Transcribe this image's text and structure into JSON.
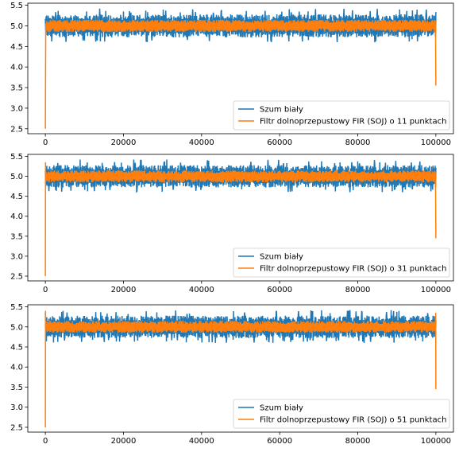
{
  "chart_data": [
    {
      "type": "line",
      "title": "",
      "xlabel": "",
      "ylabel": "",
      "xlim": [
        -4500,
        104500
      ],
      "ylim": [
        2.38,
        5.55
      ],
      "xticks": [
        0,
        20000,
        40000,
        60000,
        80000,
        100000
      ],
      "xtick_labels": [
        "0",
        "20000",
        "40000",
        "60000",
        "80000",
        "100000"
      ],
      "yticks": [
        2.5,
        3.0,
        3.5,
        4.0,
        4.5,
        5.0,
        5.5
      ],
      "ytick_labels": [
        "2.5",
        "3.0",
        "3.5",
        "4.0",
        "4.5",
        "5.0",
        "5.5"
      ],
      "grid": false,
      "legend_position": "lower-right",
      "n_samples": 100000,
      "series": [
        {
          "name": "Szum biały",
          "color": "#1f77b4",
          "description_values": {
            "center": 5.0,
            "levels": [
              4.8,
              5.2
            ],
            "min": 4.6,
            "max": 5.45
          }
        },
        {
          "name": "Filtr dolnoprzepustowy FIR (SOJ) o 11 punktach",
          "color": "#ff7f0e",
          "description_values": {
            "center": 5.0,
            "min": 4.75,
            "max": 5.2,
            "start_dip": 2.5,
            "end_drop": 3.55
          }
        }
      ]
    },
    {
      "type": "line",
      "title": "",
      "xlabel": "",
      "ylabel": "",
      "xlim": [
        -4500,
        104500
      ],
      "ylim": [
        2.38,
        5.55
      ],
      "xticks": [
        0,
        20000,
        40000,
        60000,
        80000,
        100000
      ],
      "xtick_labels": [
        "0",
        "20000",
        "40000",
        "60000",
        "80000",
        "100000"
      ],
      "yticks": [
        2.5,
        3.0,
        3.5,
        4.0,
        4.5,
        5.0,
        5.5
      ],
      "ytick_labels": [
        "2.5",
        "3.0",
        "3.5",
        "4.0",
        "4.5",
        "5.0",
        "5.5"
      ],
      "grid": false,
      "legend_position": "lower-right",
      "n_samples": 100000,
      "series": [
        {
          "name": "Szum biały",
          "color": "#1f77b4",
          "description_values": {
            "center": 5.0,
            "levels": [
              4.8,
              5.2
            ],
            "min": 4.6,
            "max": 5.45
          }
        },
        {
          "name": "Filtr dolnoprzepustowy FIR (SOJ) o 31 punktach",
          "color": "#ff7f0e",
          "description_values": {
            "center": 5.0,
            "min": 4.75,
            "max": 5.25,
            "start_peak": 5.35,
            "start_dip": 2.5,
            "end_drop": 3.45
          }
        }
      ]
    },
    {
      "type": "line",
      "title": "",
      "xlabel": "",
      "ylabel": "",
      "xlim": [
        -4500,
        104500
      ],
      "ylim": [
        2.38,
        5.55
      ],
      "xticks": [
        0,
        20000,
        40000,
        60000,
        80000,
        100000
      ],
      "xtick_labels": [
        "0",
        "20000",
        "40000",
        "60000",
        "80000",
        "100000"
      ],
      "yticks": [
        2.5,
        3.0,
        3.5,
        4.0,
        4.5,
        5.0,
        5.5
      ],
      "ytick_labels": [
        "2.5",
        "3.0",
        "3.5",
        "4.0",
        "4.5",
        "5.0",
        "5.5"
      ],
      "grid": false,
      "legend_position": "lower-right",
      "n_samples": 100000,
      "series": [
        {
          "name": "Szum biały",
          "color": "#1f77b4",
          "description_values": {
            "center": 5.0,
            "levels": [
              4.8,
              5.2
            ],
            "min": 4.6,
            "max": 5.45
          }
        },
        {
          "name": "Filtr dolnoprzepustowy FIR (SOJ) o 51 punktach",
          "color": "#ff7f0e",
          "description_values": {
            "center": 5.0,
            "min": 4.75,
            "max": 5.25,
            "start_peak": 5.4,
            "start_dip": 2.5,
            "end_drop": 3.45,
            "end_peak": 5.35
          }
        }
      ]
    }
  ]
}
